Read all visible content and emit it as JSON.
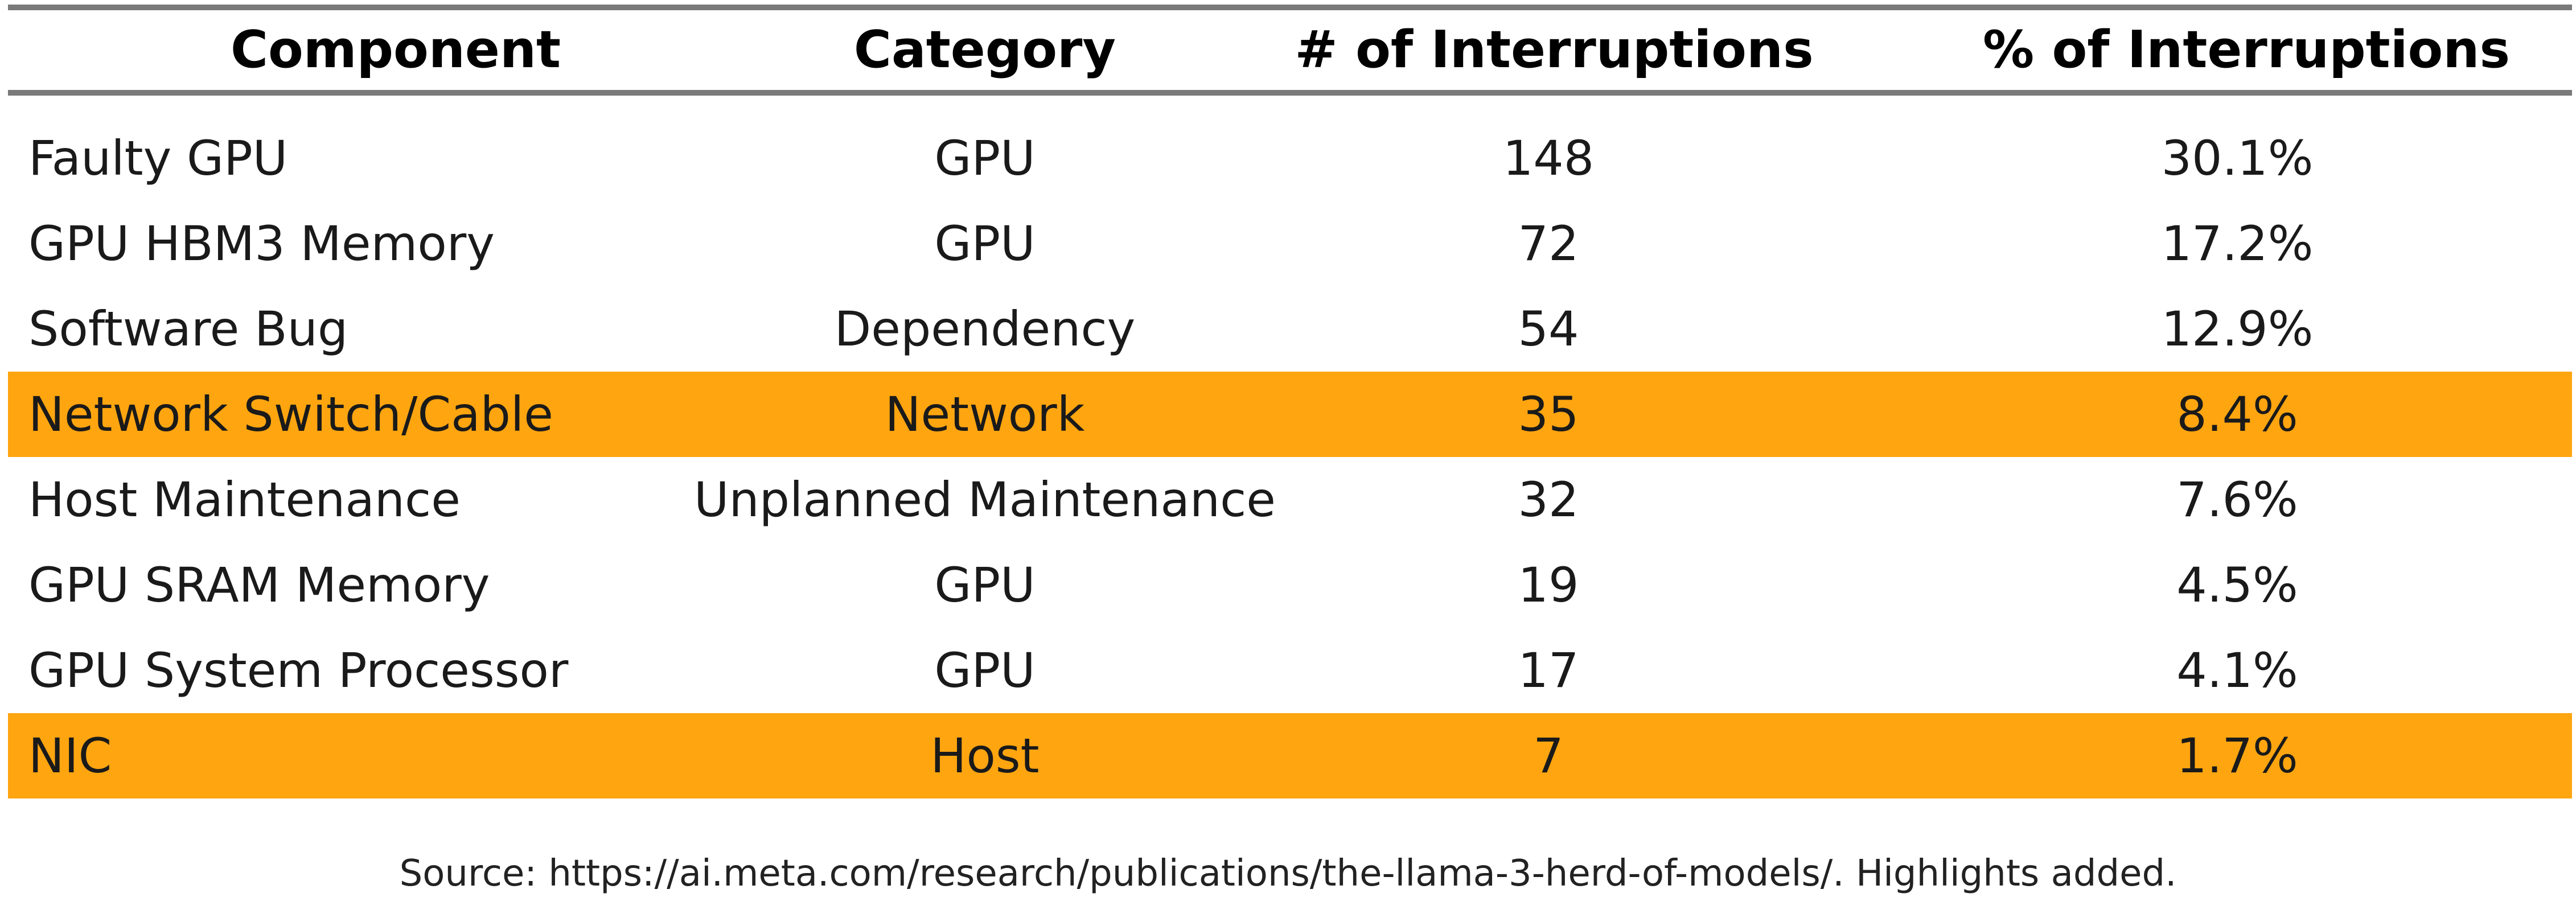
{
  "table": {
    "headers": [
      "Component",
      "Category",
      "# of Interruptions",
      "% of Interruptions"
    ],
    "rows": [
      {
        "component": "Faulty GPU",
        "category": "GPU",
        "count": "148",
        "percent": "30.1%",
        "highlighted": false
      },
      {
        "component": "GPU HBM3 Memory",
        "category": "GPU",
        "count": "72",
        "percent": "17.2%",
        "highlighted": false
      },
      {
        "component": "Software Bug",
        "category": "Dependency",
        "count": "54",
        "percent": "12.9%",
        "highlighted": false
      },
      {
        "component": "Network Switch/Cable",
        "category": "Network",
        "count": "35",
        "percent": "8.4%",
        "highlighted": true
      },
      {
        "component": "Host Maintenance",
        "category": "Unplanned Maintenance",
        "count": "32",
        "percent": "7.6%",
        "highlighted": false
      },
      {
        "component": "GPU SRAM Memory",
        "category": "GPU",
        "count": "19",
        "percent": "4.5%",
        "highlighted": false
      },
      {
        "component": "GPU System Processor",
        "category": "GPU",
        "count": "17",
        "percent": "4.1%",
        "highlighted": false
      },
      {
        "component": "NIC",
        "category": "Host",
        "count": "7",
        "percent": "1.7%",
        "highlighted": true
      }
    ]
  },
  "source_note": "Source: https://ai.meta.com/research/publications/the-llama-3-herd-of-models/. Highlights added.",
  "colors": {
    "highlight": "#ffa510",
    "rule": "#7a7a7a",
    "text": "#1a1a1a"
  }
}
